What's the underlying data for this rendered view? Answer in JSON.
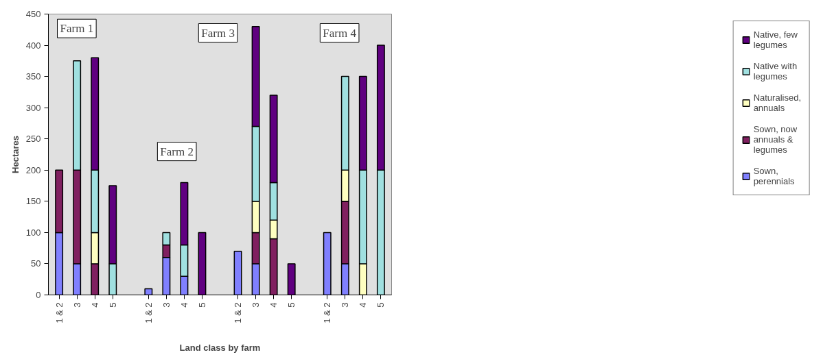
{
  "chart_data": {
    "type": "bar",
    "stacked": true,
    "xlabel": "Land class by farm",
    "ylabel": "Hectares",
    "categories": [
      "1 & 2",
      "3",
      "4",
      "5",
      null,
      "1 & 2",
      "3",
      "4",
      "5",
      null,
      "1 & 2",
      "3",
      "4",
      "5",
      null,
      "1 & 2",
      "3",
      "4",
      "5"
    ],
    "series": [
      {
        "name": "Sown, perennials",
        "color": "#8080ff",
        "values": [
          100,
          50,
          0,
          0,
          null,
          10,
          60,
          30,
          0,
          null,
          70,
          50,
          0,
          0,
          null,
          100,
          50,
          0,
          0
        ]
      },
      {
        "name": "Sown, now annuals & legumes",
        "color": "#802060",
        "values": [
          100,
          150,
          50,
          0,
          null,
          0,
          20,
          0,
          0,
          null,
          0,
          50,
          90,
          0,
          null,
          0,
          100,
          0,
          0
        ]
      },
      {
        "name": "Naturalised, annuals",
        "color": "#ffffc0",
        "values": [
          0,
          0,
          50,
          0,
          null,
          0,
          0,
          0,
          0,
          null,
          0,
          50,
          30,
          0,
          null,
          0,
          50,
          50,
          0
        ]
      },
      {
        "name": "Native with legumes",
        "color": "#a0e0e0",
        "values": [
          0,
          175,
          100,
          50,
          null,
          0,
          20,
          50,
          0,
          null,
          0,
          120,
          60,
          0,
          null,
          0,
          150,
          150,
          200
        ]
      },
      {
        "name": "Native, few legumes",
        "color": "#600080",
        "values": [
          0,
          0,
          180,
          125,
          null,
          0,
          0,
          100,
          100,
          null,
          0,
          160,
          140,
          50,
          null,
          0,
          0,
          150,
          200
        ]
      }
    ],
    "annotations": [
      "Farm 1",
      "Farm 2",
      "Farm 3",
      "Farm 4"
    ],
    "ylim": [
      0,
      450
    ],
    "yticks": [
      0,
      50,
      100,
      150,
      200,
      250,
      300,
      350,
      400,
      450
    ],
    "grid": false,
    "legend": "right"
  }
}
